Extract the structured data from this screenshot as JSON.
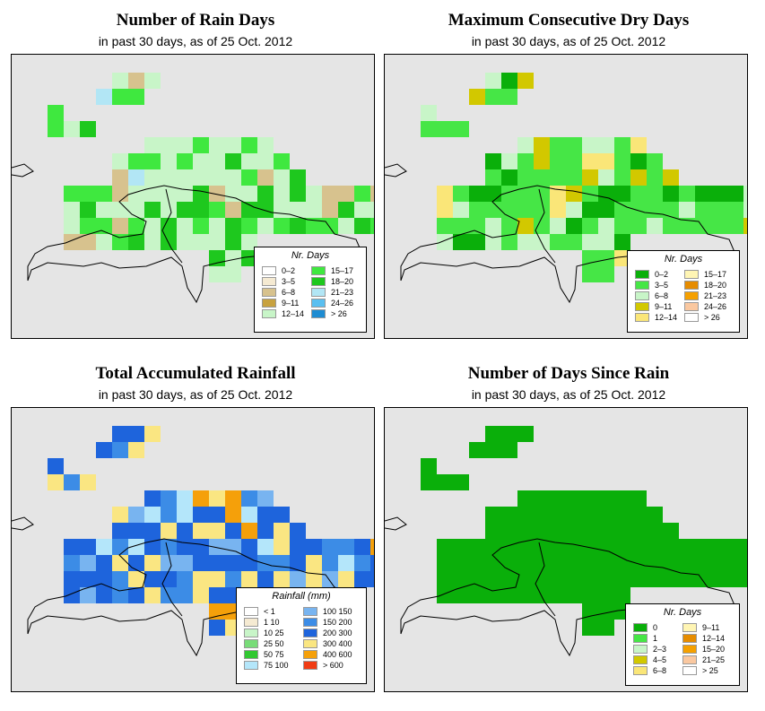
{
  "panels": [
    {
      "id": "rain-days",
      "title": "Number of Rain Days",
      "subtitle": "in past 30 days, as of  25 Oct. 2012",
      "legend": {
        "title": "Nr. Days",
        "left": [
          {
            "label": "0–2",
            "color": "#ffffff"
          },
          {
            "label": "3–5",
            "color": "#f5ead2"
          },
          {
            "label": "6–8",
            "color": "#d7c28e"
          },
          {
            "label": "9–11",
            "color": "#c8a240"
          },
          {
            "label": "12–14",
            "color": "#c8f5c8"
          }
        ],
        "right": [
          {
            "label": "15–17",
            "color": "#3fe83f"
          },
          {
            "label": "18–20",
            "color": "#1ec81e"
          },
          {
            "label": "21–23",
            "color": "#b2e6f5"
          },
          {
            "label": "24–26",
            "color": "#5abff0"
          },
          {
            "label": "> 26",
            "color": "#1e8cd2"
          }
        ]
      }
    },
    {
      "id": "dry-days",
      "title": "Maximum Consecutive Dry Days",
      "subtitle": "in past 30 days, as of  25 Oct. 2012",
      "legend": {
        "title": "Nr. Days",
        "left": [
          {
            "label": "0–2",
            "color": "#0aaf0a"
          },
          {
            "label": "3–5",
            "color": "#46e646"
          },
          {
            "label": "6–8",
            "color": "#c8f5c8"
          },
          {
            "label": "9–11",
            "color": "#d2c800"
          },
          {
            "label": "12–14",
            "color": "#fae678"
          }
        ],
        "right": [
          {
            "label": "15–17",
            "color": "#fff5b4"
          },
          {
            "label": "18–20",
            "color": "#e68c00"
          },
          {
            "label": "21–23",
            "color": "#f5a000"
          },
          {
            "label": "24–26",
            "color": "#fac8a0"
          },
          {
            "label": "> 26",
            "color": "#ffffff"
          }
        ]
      }
    },
    {
      "id": "rainfall",
      "title": "Total Accumulated Rainfall",
      "subtitle": "in past 30 days, as of  25 Oct. 2012",
      "legend": {
        "title": "Rainfall (mm)",
        "left": [
          {
            "label": "< 1",
            "color": "#ffffff"
          },
          {
            "label": "1   10",
            "color": "#f5ead2"
          },
          {
            "label": "10   25",
            "color": "#c8f5c8"
          },
          {
            "label": "25   50",
            "color": "#78dc78"
          },
          {
            "label": "50   75",
            "color": "#32c832"
          },
          {
            "label": "75  100",
            "color": "#b4e6fa"
          }
        ],
        "right": [
          {
            "label": "100  150",
            "color": "#78b4f0"
          },
          {
            "label": "150  200",
            "color": "#3c8ce6"
          },
          {
            "label": "200  300",
            "color": "#1e64dc"
          },
          {
            "label": "300  400",
            "color": "#fae682"
          },
          {
            "label": "400  600",
            "color": "#f5a00a"
          },
          {
            "label": "> 600",
            "color": "#f03c14"
          }
        ]
      }
    },
    {
      "id": "since-rain",
      "title": "Number of Days Since Rain",
      "subtitle": "in past 30 days, as of  25 Oct. 2012",
      "legend": {
        "title": "Nr. Days",
        "left": [
          {
            "label": "0",
            "color": "#0aaf0a"
          },
          {
            "label": "1",
            "color": "#46e646"
          },
          {
            "label": "2–3",
            "color": "#c8f5c8"
          },
          {
            "label": "4–5",
            "color": "#d2c800"
          },
          {
            "label": "6–8",
            "color": "#fae678"
          }
        ],
        "right": [
          {
            "label": "9–11",
            "color": "#fff5b4"
          },
          {
            "label": "12–14",
            "color": "#e68c00"
          },
          {
            "label": "15–20",
            "color": "#f5a000"
          },
          {
            "label": "21–25",
            "color": "#fac8a0"
          },
          {
            "label": "> 25",
            "color": "#ffffff"
          }
        ]
      }
    }
  ]
}
